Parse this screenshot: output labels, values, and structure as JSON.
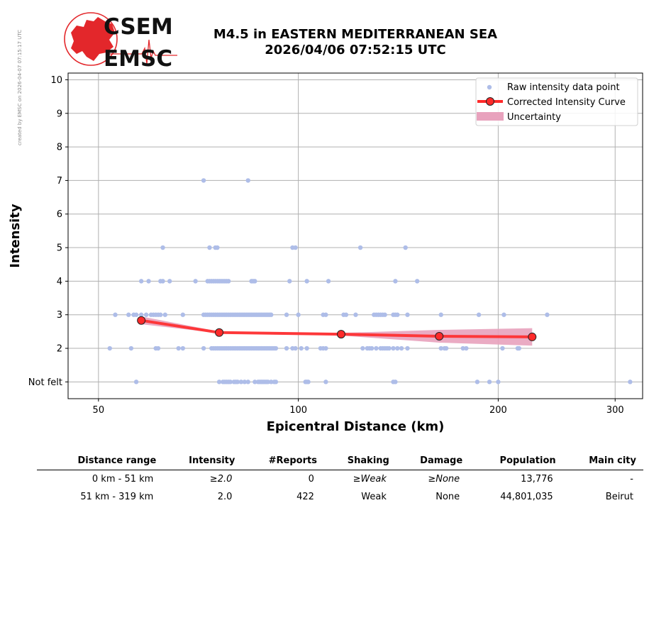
{
  "credit": "created by EMSC on 2026-04-07 07:15:17 UTC",
  "logo": {
    "line1": "CSEM",
    "line2": "EMSC",
    "brand_color": "#e3272b"
  },
  "title": {
    "line1": "M4.5 in EASTERN MEDITERRANEAN SEA",
    "line2": "2026/04/06 07:52:15 UTC"
  },
  "chart_data": {
    "type": "scatter",
    "xlabel": "Epicentral Distance (km)",
    "ylabel": "Intensity",
    "x_scale": "log",
    "xlim": [
      45,
      330
    ],
    "ylim": [
      0.5,
      10.2
    ],
    "x_ticks": [
      50,
      100,
      200,
      300
    ],
    "y_ticks": [
      {
        "value": 1,
        "label": "Not felt"
      },
      {
        "value": 2,
        "label": "2"
      },
      {
        "value": 3,
        "label": "3"
      },
      {
        "value": 4,
        "label": "4"
      },
      {
        "value": 5,
        "label": "5"
      },
      {
        "value": 6,
        "label": "6"
      },
      {
        "value": 7,
        "label": "7"
      },
      {
        "value": 8,
        "label": "8"
      },
      {
        "value": 9,
        "label": "9"
      },
      {
        "value": 10,
        "label": "10"
      }
    ],
    "grid": true,
    "legend_position": "top-right",
    "legend": [
      "Raw intensity data point",
      "Corrected Intensity Curve",
      "Uncertainty"
    ],
    "colors": {
      "raw": "#aebde8",
      "curve": "#ff2a2a",
      "curve_marker_edge": "#222222",
      "uncertainty": "#e8a2bd"
    },
    "raw_points": [
      {
        "intensity": 1,
        "distances": [
          57,
          76,
          77,
          77.5,
          78,
          78.5,
          79,
          80,
          80.5,
          81,
          82,
          83,
          84,
          86,
          87,
          87.5,
          88,
          88.5,
          89,
          89.5,
          90,
          91,
          92,
          92.5,
          102.5,
          103,
          103.5,
          110,
          139,
          140,
          186,
          194,
          200,
          316
        ]
      },
      {
        "intensity": 2,
        "distances": [
          52,
          56,
          61,
          61.5,
          66,
          67,
          72,
          74,
          74.5,
          75,
          75.5,
          76,
          76.5,
          77,
          77.5,
          78,
          78.5,
          79,
          79.5,
          80,
          80.5,
          81,
          81.5,
          82,
          82.5,
          83,
          83.5,
          84,
          84.5,
          85,
          85.5,
          86,
          86.5,
          87,
          87.5,
          88,
          88.5,
          89,
          89.5,
          90,
          90.5,
          91,
          91.5,
          92,
          92.5,
          96,
          98,
          99,
          101,
          103,
          108,
          109,
          110,
          125,
          127,
          128,
          129,
          131,
          133,
          134,
          135,
          136,
          137,
          139,
          141,
          143,
          146,
          164,
          166,
          167,
          177,
          179,
          203,
          214,
          215
        ]
      },
      {
        "intensity": 3,
        "distances": [
          53,
          55.5,
          56.5,
          57,
          58,
          59,
          60,
          60.5,
          61,
          61.5,
          62,
          63,
          67,
          72,
          72.5,
          73,
          73.5,
          74,
          74.5,
          75,
          75.5,
          76,
          76.5,
          77,
          77.5,
          78,
          78.5,
          79,
          79.5,
          80,
          80.5,
          81,
          81.5,
          82,
          82.5,
          83,
          83.5,
          84,
          84.5,
          85,
          85.5,
          86,
          86.5,
          87,
          87.5,
          88,
          88.5,
          89,
          89.5,
          90,
          90.5,
          91,
          96,
          100,
          109,
          110,
          117,
          118,
          122,
          130,
          131,
          132,
          133,
          134,
          135,
          139,
          140,
          141,
          146,
          164,
          187,
          204,
          237
        ]
      },
      {
        "intensity": 4,
        "distances": [
          58,
          59.5,
          62,
          62.5,
          64,
          70,
          73,
          73.5,
          74,
          74.5,
          75,
          75.5,
          76,
          76.5,
          77,
          77.5,
          78,
          78.5,
          85,
          85.5,
          86,
          97,
          103,
          111,
          140,
          151
        ]
      },
      {
        "intensity": 5,
        "distances": [
          62.5,
          73.5,
          75,
          75.5,
          98,
          99,
          124,
          145
        ]
      },
      {
        "intensity": 7,
        "distances": [
          72,
          84
        ]
      }
    ],
    "corrected_curve": [
      {
        "distance": 58,
        "intensity": 2.83
      },
      {
        "distance": 76,
        "intensity": 2.47
      },
      {
        "distance": 116,
        "intensity": 2.42
      },
      {
        "distance": 163,
        "intensity": 2.36
      },
      {
        "distance": 225,
        "intensity": 2.34
      }
    ],
    "uncertainty_band": [
      {
        "distance": 58,
        "low": 2.72,
        "high": 2.95
      },
      {
        "distance": 76,
        "low": 2.45,
        "high": 2.5
      },
      {
        "distance": 116,
        "low": 2.38,
        "high": 2.46
      },
      {
        "distance": 163,
        "low": 2.17,
        "high": 2.55
      },
      {
        "distance": 225,
        "low": 2.08,
        "high": 2.6
      }
    ]
  },
  "table": {
    "headers": [
      "Distance range",
      "Intensity",
      "#Reports",
      "Shaking",
      "Damage",
      "Population",
      "Main city"
    ],
    "rows": [
      [
        "0 km -   51 km",
        "≥2.0",
        "0",
        "≥Weak",
        "≥None",
        "13,776",
        "-"
      ],
      [
        "51 km -  319 km",
        "2.0",
        "422",
        "Weak",
        "None",
        "44,801,035",
        "Beirut"
      ]
    ]
  }
}
